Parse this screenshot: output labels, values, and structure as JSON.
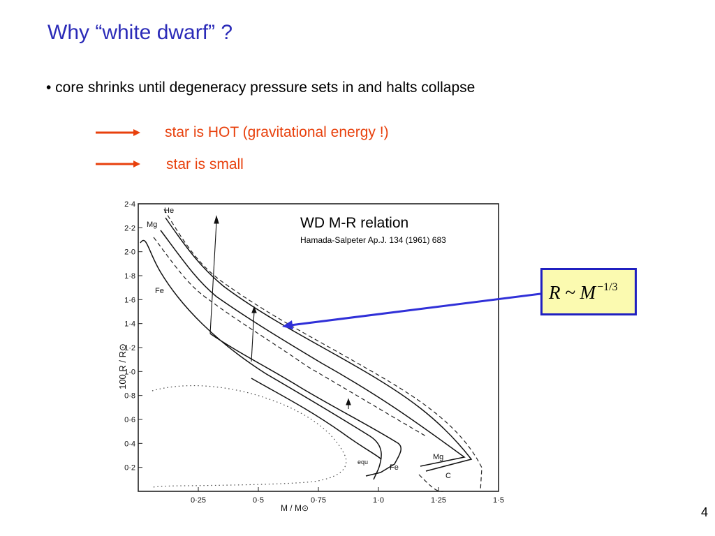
{
  "slide": {
    "title": "Why “white dwarf” ?",
    "bullet": "• core shrinks until degeneracy pressure sets in and halts collapse",
    "points": [
      "star is HOT (gravitational energy !)",
      "star is small"
    ],
    "page_number": "4"
  },
  "figure": {
    "label": "WD M-R relation",
    "reference": "Hamada-Salpeter Ap.J. 134 (1961) 683",
    "formula_main": "R ~ M",
    "formula_exp": "−1/3",
    "colors": {
      "title": "#2b2bb8",
      "accent": "#e8400c",
      "box_fill": "#fbfab0",
      "box_border": "#2020c0"
    }
  },
  "chart_data": {
    "type": "line",
    "xlabel": "M / M⊙",
    "ylabel": "100 R / R⊙",
    "x_ticks": [
      "0·25",
      "0·5",
      "0·75",
      "1·0",
      "1·25",
      "1·5"
    ],
    "y_ticks": [
      "0·2",
      "0·4",
      "0·6",
      "0·8",
      "1·0",
      "1·2",
      "1·4",
      "1·6",
      "1·8",
      "2·0",
      "2·2",
      "2·4"
    ],
    "xlim": [
      0,
      1.5
    ],
    "ylim": [
      0,
      2.4
    ],
    "curve_labels": [
      "He",
      "Mg",
      "Fe",
      "equ",
      "Fe",
      "Mg",
      "C"
    ]
  }
}
